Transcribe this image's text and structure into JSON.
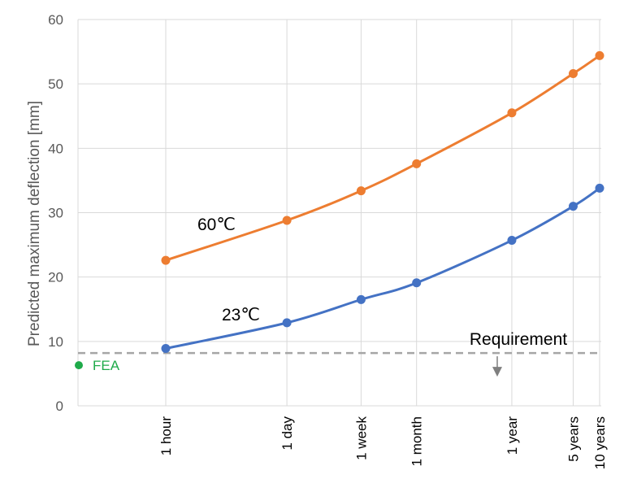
{
  "chart_data": {
    "type": "line",
    "title": "",
    "xlabel": "",
    "ylabel": "Predicted maximum deflection [mm]",
    "ylim": [
      0,
      60
    ],
    "yticks": [
      0,
      10,
      20,
      30,
      40,
      50,
      60
    ],
    "categories": [
      "1 hour",
      "1 day",
      "1 week",
      "1 month",
      "1 year",
      "5 years",
      "10 years"
    ],
    "x_log_hours": [
      0,
      1.3802,
      2.2253,
      2.8573,
      3.9425,
      4.6415,
      4.9425
    ],
    "series": [
      {
        "name": "60℃",
        "color": "#ED7D31",
        "values": [
          22.6,
          28.8,
          33.4,
          37.6,
          45.5,
          51.6,
          54.4
        ]
      },
      {
        "name": "23℃",
        "color": "#4472C4",
        "values": [
          8.9,
          12.9,
          16.5,
          19.1,
          25.7,
          31.0,
          33.8
        ]
      }
    ],
    "requirement": {
      "label": "Requirement",
      "value": 8.2,
      "color": "#A6A6A6"
    },
    "fea": {
      "label": "FEA",
      "value": 6.3,
      "color": "#1FAA4A"
    }
  }
}
